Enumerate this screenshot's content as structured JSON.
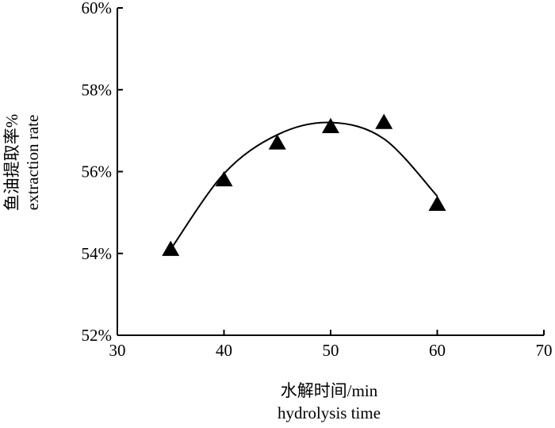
{
  "chart_data": {
    "type": "scatter",
    "title": "",
    "xlabel": [
      "水解时间/min",
      "hydrolysis time"
    ],
    "ylabel": [
      "鱼油提取率%",
      "extraction rate"
    ],
    "xlim": [
      30,
      70
    ],
    "ylim": [
      52,
      60
    ],
    "x_ticks": [
      30,
      40,
      50,
      60,
      70
    ],
    "y_ticks": [
      52,
      54,
      56,
      58,
      60
    ],
    "x_tick_labels": [
      "30",
      "40",
      "50",
      "60",
      "70"
    ],
    "y_tick_labels": [
      "52%",
      "54%",
      "56%",
      "58%",
      "60%"
    ],
    "grid": false,
    "legend": "none",
    "marker": "triangle",
    "series": [
      {
        "x": [
          35,
          40,
          45,
          50,
          55,
          60
        ],
        "y": [
          54.1,
          55.8,
          56.7,
          57.1,
          57.2,
          55.2
        ]
      }
    ],
    "fit_curve": {
      "type": "quadratic",
      "x_range": [
        35,
        60
      ],
      "points": [
        [
          35,
          54.1
        ],
        [
          40,
          55.95
        ],
        [
          45,
          56.9
        ],
        [
          50,
          57.2
        ],
        [
          55,
          56.8
        ],
        [
          60,
          55.4
        ]
      ]
    },
    "colors": {
      "marker": "#000000",
      "line": "#000000",
      "axis": "#000000"
    }
  }
}
